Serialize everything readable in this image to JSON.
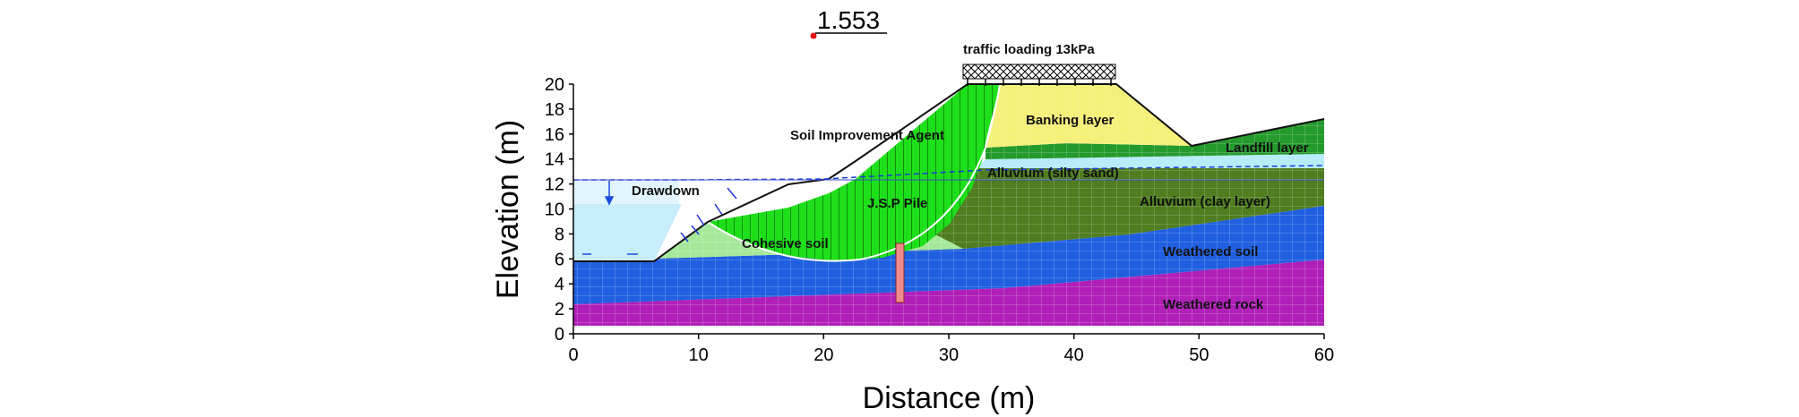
{
  "factor_of_safety": "1.553",
  "load_label": "traffic loading 13kPa",
  "axes": {
    "xlabel": "Distance (m)",
    "ylabel": "Elevation (m)",
    "xlim": [
      0,
      60
    ],
    "ylim": [
      0,
      20
    ],
    "x_ticks": [
      "0",
      "10",
      "20",
      "30",
      "40",
      "50",
      "60"
    ],
    "y_ticks": [
      "0",
      "2",
      "4",
      "6",
      "8",
      "10",
      "12",
      "14",
      "16",
      "18",
      "20"
    ]
  },
  "layers": {
    "soil_improvement": "Soil Improvement Agent",
    "drawdown": "Drawdown",
    "cohesive": "Cohesive soil",
    "jsp_pile": "J.S.P Pile",
    "banking": "Banking layer",
    "landfill": "Landfill layer",
    "alluvium_sand": "Alluvium (silty sand)",
    "alluvium_clay": "Alluvium (clay layer)",
    "weathered_soil": "Weathered soil",
    "weathered_rock": "Weathered rock"
  },
  "colors": {
    "weathered_rock": "#b01fb8",
    "weathered_soil": "#1f5fe0",
    "clay": "#4f7d1f",
    "silty_sand": "#b8ecf8",
    "landfill": "#249a2c",
    "banking": "#f4f07a",
    "improvement": "#1ee01a",
    "cohesive": "#a6e89a",
    "water": "#c8edfa",
    "pile": "#f08a8a"
  }
}
